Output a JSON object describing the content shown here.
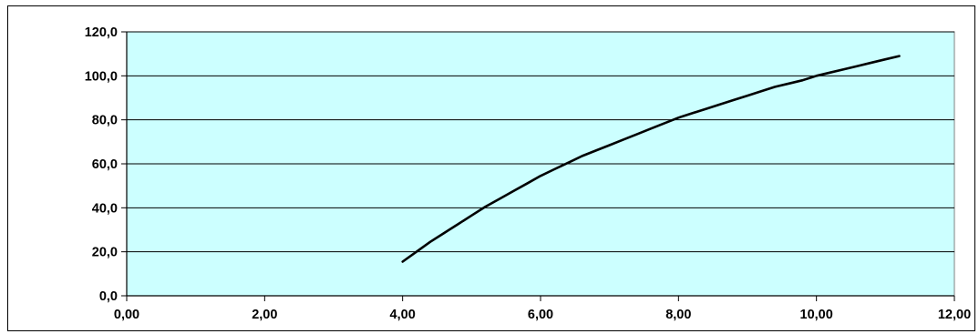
{
  "chart_data": {
    "type": "line",
    "title": "",
    "xlabel": "",
    "ylabel": "",
    "xlim": [
      0,
      12
    ],
    "ylim": [
      0,
      120
    ],
    "x_ticks": [
      0,
      2,
      4,
      6,
      8,
      10,
      12
    ],
    "y_ticks": [
      0,
      20,
      40,
      60,
      80,
      100,
      120
    ],
    "x_tick_labels": [
      "0,00",
      "2,00",
      "4,00",
      "6,00",
      "8,00",
      "10,00",
      "12,00"
    ],
    "y_tick_labels": [
      "0,0",
      "20,0",
      "40,0",
      "60,0",
      "80,0",
      "100,0",
      "120,0"
    ],
    "grid": {
      "horizontal": true,
      "vertical": false
    },
    "legend": "none",
    "colors": {
      "plot_background": "#CCFFFF",
      "line": "#000000",
      "grid": "#000000",
      "frame": "#000000"
    },
    "series": [
      {
        "values_x": [
          4.0,
          4.2,
          4.4,
          4.6,
          4.8,
          5.0,
          5.2,
          5.4,
          5.6,
          5.8,
          6.0,
          6.2,
          6.4,
          6.6,
          6.8,
          7.0,
          7.2,
          7.4,
          7.6,
          7.8,
          8.0,
          8.2,
          8.4,
          8.6,
          8.8,
          9.0,
          9.2,
          9.4,
          9.6,
          9.8,
          10.0,
          10.2,
          10.4,
          10.6,
          10.8,
          11.0,
          11.2
        ],
        "values_y": [
          15.5,
          20.0,
          24.5,
          28.5,
          32.5,
          36.5,
          40.5,
          44.0,
          47.5,
          51.0,
          54.5,
          57.5,
          60.5,
          63.5,
          66.0,
          68.5,
          71.0,
          73.5,
          76.0,
          78.5,
          81.0,
          83.0,
          85.0,
          87.0,
          89.0,
          91.0,
          93.0,
          95.0,
          96.5,
          98.0,
          100.0,
          101.5,
          103.0,
          104.5,
          106.0,
          107.5,
          109.0
        ]
      }
    ]
  }
}
